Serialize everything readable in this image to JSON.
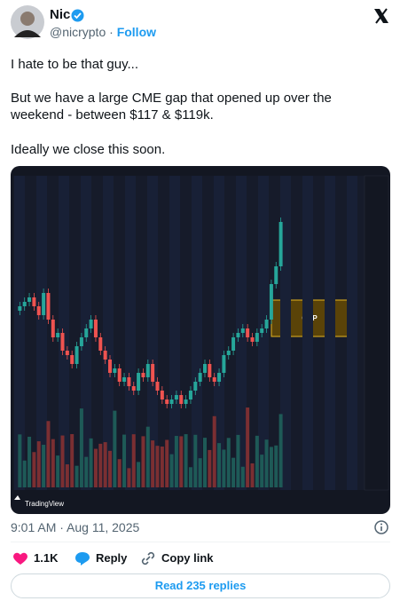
{
  "author": {
    "name": "Nic",
    "handle": "@nicrypto",
    "separator": "·",
    "follow": "Follow"
  },
  "tweet": {
    "lines": [
      "I hate to be that guy...",
      "But we have a large CME gap that opened up over the",
      "weekend - between $117 & $119k.",
      "Ideally we close this soon."
    ]
  },
  "media": {
    "gap_label": "GAP",
    "watermark": "TradingView"
  },
  "timestamp": "9:01 AM · Aug 11, 2025",
  "actions": {
    "likes": "1.1K",
    "reply": "Reply",
    "copy": "Copy link"
  },
  "replies_button": "Read 235 replies"
}
